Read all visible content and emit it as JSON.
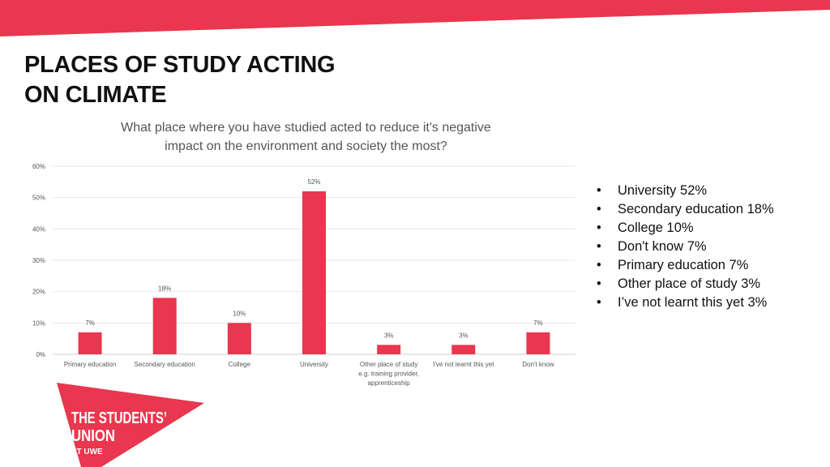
{
  "page": {
    "title_line1": "PLACES OF STUDY ACTING",
    "title_line2": "ON CLIMATE",
    "accent_color": "#e8374e"
  },
  "chart_data": {
    "type": "bar",
    "title_line1": "What place where you have studied acted to reduce it's negative",
    "title_line2": "impact on the environment and society the most?",
    "categories": [
      [
        "Primary education"
      ],
      [
        "Secondary education"
      ],
      [
        "College"
      ],
      [
        "University"
      ],
      [
        "Other place of study",
        "e.g. training provider,",
        "apprenticeship"
      ],
      [
        "I've not learnt this yet"
      ],
      [
        "Don't know"
      ]
    ],
    "values": [
      7,
      18,
      10,
      52,
      3,
      3,
      7
    ],
    "value_labels": [
      "7%",
      "18%",
      "10%",
      "52%",
      "3%",
      "3%",
      "7%"
    ],
    "y_ticks": [
      "0%",
      "10%",
      "20%",
      "30%",
      "40%",
      "50%",
      "60%"
    ],
    "ylim": [
      0,
      60
    ],
    "grid": true,
    "bar_color": "#e8374e"
  },
  "summary": {
    "items": [
      "University 52%",
      "Secondary education 18%",
      "College 10%",
      "Don't know 7%",
      "Primary education 7%",
      "Other place of study 3%",
      "I’ve not learnt this yet 3%"
    ]
  },
  "logo": {
    "line1": "THE STUDENTS’",
    "line2": "UNION",
    "line3": "AT UWE",
    "color": "#e8374e"
  }
}
